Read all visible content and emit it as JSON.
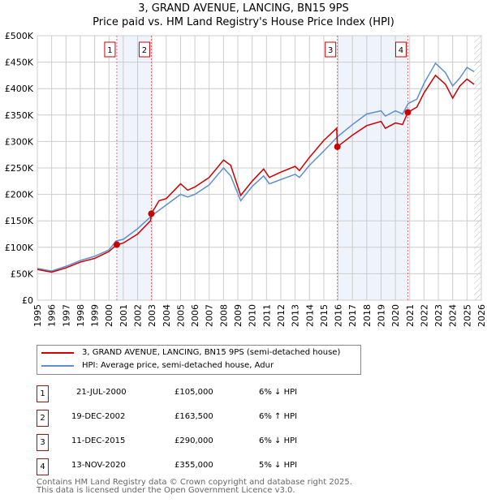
{
  "chart_data": {
    "type": "line",
    "title": "3, GRAND AVENUE, LANCING, BN15 9PS",
    "subtitle": "Price paid vs. HM Land Registry's House Price Index (HPI)",
    "xlim": [
      1995,
      2026
    ],
    "ylim": [
      0,
      500000
    ],
    "x_ticks": [
      "1995",
      "1996",
      "1997",
      "1998",
      "1999",
      "2000",
      "2001",
      "2002",
      "2003",
      "2004",
      "2005",
      "2006",
      "2007",
      "2008",
      "2009",
      "2010",
      "2011",
      "2012",
      "2013",
      "2014",
      "2015",
      "2016",
      "2017",
      "2018",
      "2019",
      "2020",
      "2021",
      "2022",
      "2023",
      "2024",
      "2025",
      "2026"
    ],
    "y_ticks": [
      {
        "v": 0,
        "l": "£0"
      },
      {
        "v": 50000,
        "l": "£50K"
      },
      {
        "v": 100000,
        "l": "£100K"
      },
      {
        "v": 150000,
        "l": "£150K"
      },
      {
        "v": 200000,
        "l": "£200K"
      },
      {
        "v": 250000,
        "l": "£250K"
      },
      {
        "v": 300000,
        "l": "£300K"
      },
      {
        "v": 350000,
        "l": "£350K"
      },
      {
        "v": 400000,
        "l": "£400K"
      },
      {
        "v": 450000,
        "l": "£450K"
      },
      {
        "v": 500000,
        "l": "£500K"
      }
    ],
    "grid": true,
    "series": [
      {
        "name": "3, GRAND AVENUE, LANCING, BN15 9PS (semi-detached house)",
        "color": "#cc0000",
        "points": [
          [
            1995,
            58
          ],
          [
            1996,
            53
          ],
          [
            1997,
            61
          ],
          [
            1998,
            72
          ],
          [
            1999,
            79
          ],
          [
            2000,
            92
          ],
          [
            2000.55,
            105
          ],
          [
            2001,
            108
          ],
          [
            2002,
            125
          ],
          [
            2002.9,
            150
          ],
          [
            2002.96,
            163.5
          ],
          [
            2003.5,
            188
          ],
          [
            2004,
            192
          ],
          [
            2005,
            220
          ],
          [
            2005.5,
            208
          ],
          [
            2006,
            214
          ],
          [
            2007,
            232
          ],
          [
            2008,
            265
          ],
          [
            2008.5,
            255
          ],
          [
            2009.2,
            198
          ],
          [
            2010,
            225
          ],
          [
            2010.8,
            248
          ],
          [
            2011.2,
            232
          ],
          [
            2012,
            242
          ],
          [
            2013,
            253
          ],
          [
            2013.3,
            245
          ],
          [
            2014,
            270
          ],
          [
            2015,
            302
          ],
          [
            2015.9,
            325
          ],
          [
            2015.95,
            290
          ],
          [
            2017,
            312
          ],
          [
            2018,
            330
          ],
          [
            2019,
            338
          ],
          [
            2019.3,
            325
          ],
          [
            2020,
            335
          ],
          [
            2020.5,
            332
          ],
          [
            2020.87,
            355
          ],
          [
            2021.5,
            365
          ],
          [
            2022,
            392
          ],
          [
            2022.8,
            425
          ],
          [
            2023.5,
            408
          ],
          [
            2024,
            382
          ],
          [
            2024.5,
            405
          ],
          [
            2025,
            418
          ],
          [
            2025.5,
            408
          ]
        ]
      },
      {
        "name": "HPI: Average price, semi-detached house, Adur",
        "color": "#5b8fd0",
        "points": [
          [
            1995,
            60
          ],
          [
            1996,
            55
          ],
          [
            1997,
            64
          ],
          [
            1998,
            75
          ],
          [
            1999,
            83
          ],
          [
            2000,
            95
          ],
          [
            2000.5,
            112
          ],
          [
            2001,
            115
          ],
          [
            2002,
            135
          ],
          [
            2003,
            160
          ],
          [
            2004,
            180
          ],
          [
            2005,
            200
          ],
          [
            2005.5,
            195
          ],
          [
            2006,
            200
          ],
          [
            2007,
            218
          ],
          [
            2008,
            250
          ],
          [
            2008.5,
            235
          ],
          [
            2009.2,
            188
          ],
          [
            2010,
            215
          ],
          [
            2010.8,
            235
          ],
          [
            2011.2,
            220
          ],
          [
            2012,
            228
          ],
          [
            2013,
            238
          ],
          [
            2013.3,
            232
          ],
          [
            2014,
            255
          ],
          [
            2015,
            282
          ],
          [
            2016,
            310
          ],
          [
            2017,
            332
          ],
          [
            2018,
            352
          ],
          [
            2019,
            358
          ],
          [
            2019.3,
            348
          ],
          [
            2020,
            358
          ],
          [
            2020.5,
            352
          ],
          [
            2020.9,
            372
          ],
          [
            2021.5,
            380
          ],
          [
            2022,
            410
          ],
          [
            2022.8,
            448
          ],
          [
            2023.5,
            430
          ],
          [
            2024,
            405
          ],
          [
            2024.5,
            420
          ],
          [
            2025,
            440
          ],
          [
            2025.5,
            432
          ]
        ]
      }
    ],
    "sales": [
      {
        "n": "1",
        "x": 2000.55,
        "price": 105000,
        "date": "21-JUL-2000",
        "price_label": "£105,000",
        "hpi": "6% ↓ HPI"
      },
      {
        "n": "2",
        "x": 2002.96,
        "price": 163500,
        "date": "19-DEC-2002",
        "price_label": "£163,500",
        "hpi": "6% ↑ HPI"
      },
      {
        "n": "3",
        "x": 2015.95,
        "price": 290000,
        "date": "11-DEC-2015",
        "price_label": "£290,000",
        "hpi": "6% ↓ HPI"
      },
      {
        "n": "4",
        "x": 2020.87,
        "price": 355000,
        "date": "13-NOV-2020",
        "price_label": "£355,000",
        "hpi": "5% ↓ HPI"
      }
    ],
    "shaded": [
      [
        2000.55,
        2002.96
      ],
      [
        2015.95,
        2020.87
      ]
    ],
    "forecast_from": 2025.5
  },
  "footer": [
    "Contains HM Land Registry data © Crown copyright and database right 2025.",
    "This data is licensed under the Open Government Licence v3.0."
  ]
}
